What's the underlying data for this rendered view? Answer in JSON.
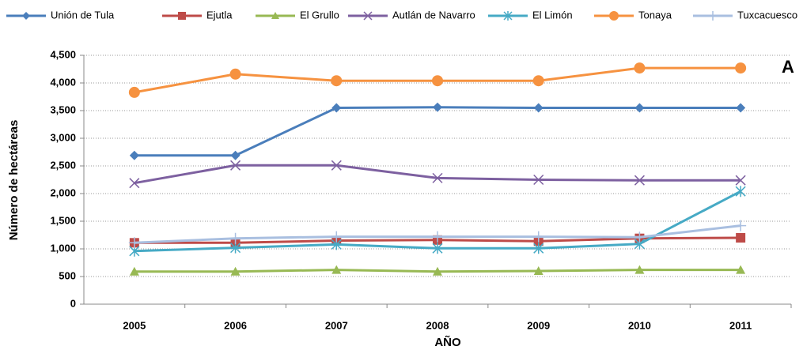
{
  "chart_data": {
    "type": "line",
    "annotation": "A",
    "x_label": "AÑO",
    "y_label": "Número de hectáreas",
    "categories": [
      "2005",
      "2006",
      "2007",
      "2008",
      "2009",
      "2010",
      "2011"
    ],
    "ylim": [
      0,
      4500
    ],
    "yticks": [
      0,
      500,
      {
        "value": 1000,
        "label": "1,000"
      },
      {
        "value": 1500,
        "label": "1,500"
      },
      {
        "value": 2000,
        "label": "2,000"
      },
      {
        "value": 2500,
        "label": "2,500"
      },
      {
        "value": 3000,
        "label": "3,000"
      },
      {
        "value": 3500,
        "label": "3,500"
      },
      {
        "value": 4000,
        "label": "4,000"
      },
      {
        "value": 4500,
        "label": "4,500"
      }
    ],
    "grid": true,
    "legend": "top",
    "series": [
      {
        "name": "Unión de Tula",
        "color": "#4a7ebb",
        "marker": "diamond",
        "values": [
          2690,
          2690,
          3550,
          3560,
          3550,
          3550,
          3550
        ]
      },
      {
        "name": "Ejutla",
        "color": "#be4b48",
        "marker": "square",
        "values": [
          1110,
          1110,
          1150,
          1160,
          1140,
          1190,
          1200
        ]
      },
      {
        "name": "El Grullo",
        "color": "#98b954",
        "marker": "triangle",
        "values": [
          590,
          590,
          620,
          590,
          600,
          620,
          620
        ]
      },
      {
        "name": "Autlán de Navarro",
        "color": "#7d60a0",
        "marker": "x",
        "values": [
          2190,
          2510,
          2510,
          2280,
          2250,
          2240,
          2240
        ]
      },
      {
        "name": "El Limón",
        "color": "#46aac5",
        "marker": "asterisk",
        "values": [
          960,
          1020,
          1080,
          1010,
          1010,
          1090,
          2040
        ]
      },
      {
        "name": "Tonaya",
        "color": "#f69240",
        "marker": "circle",
        "values": [
          3830,
          4160,
          4040,
          4040,
          4040,
          4270,
          4270
        ]
      },
      {
        "name": "Tuxcacuesco",
        "color": "#a9bfe0",
        "marker": "plus",
        "values": [
          1110,
          1190,
          1220,
          1220,
          1220,
          1210,
          1420
        ]
      }
    ]
  }
}
